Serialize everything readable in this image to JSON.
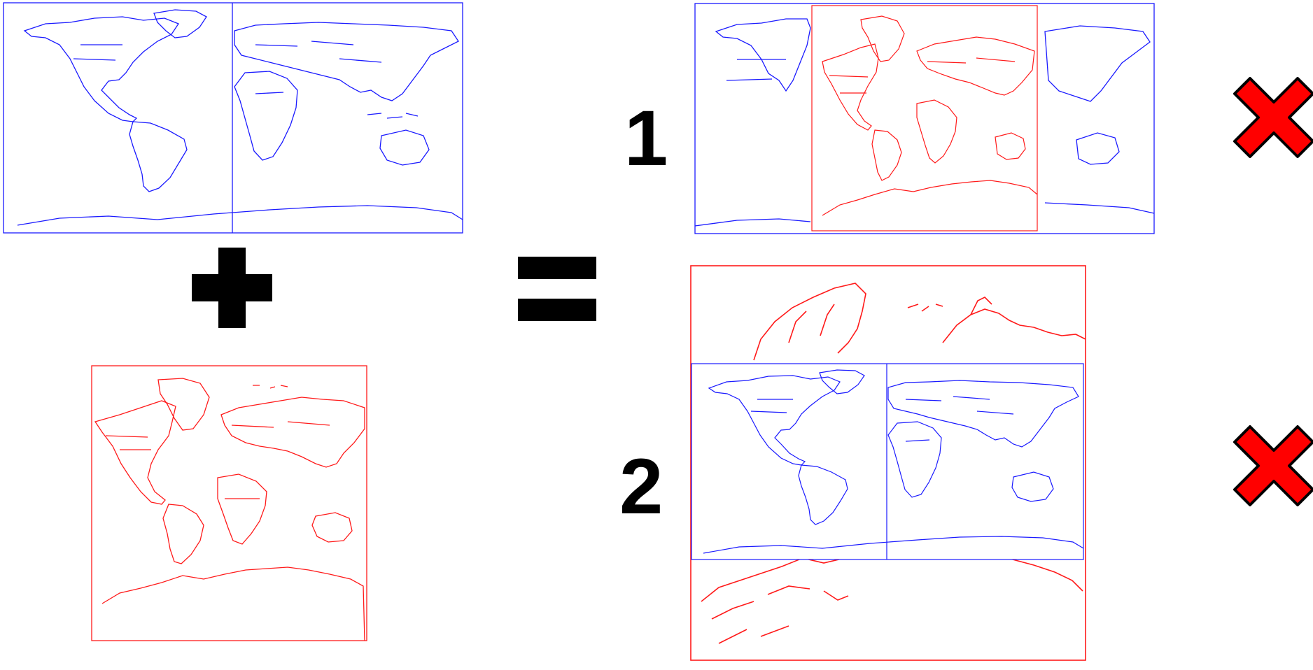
{
  "colors": {
    "blue_map": "#1a1aff",
    "red_map": "#ff1a1a",
    "symbol": "#000000",
    "cross_fill": "#ff0000",
    "cross_stroke": "#000000"
  },
  "operators": {
    "plus": "plus-sign",
    "equals": "equals-sign"
  },
  "options": [
    {
      "number": "1",
      "verdict": "cross-icon"
    },
    {
      "number": "2",
      "verdict": "cross-icon"
    }
  ]
}
